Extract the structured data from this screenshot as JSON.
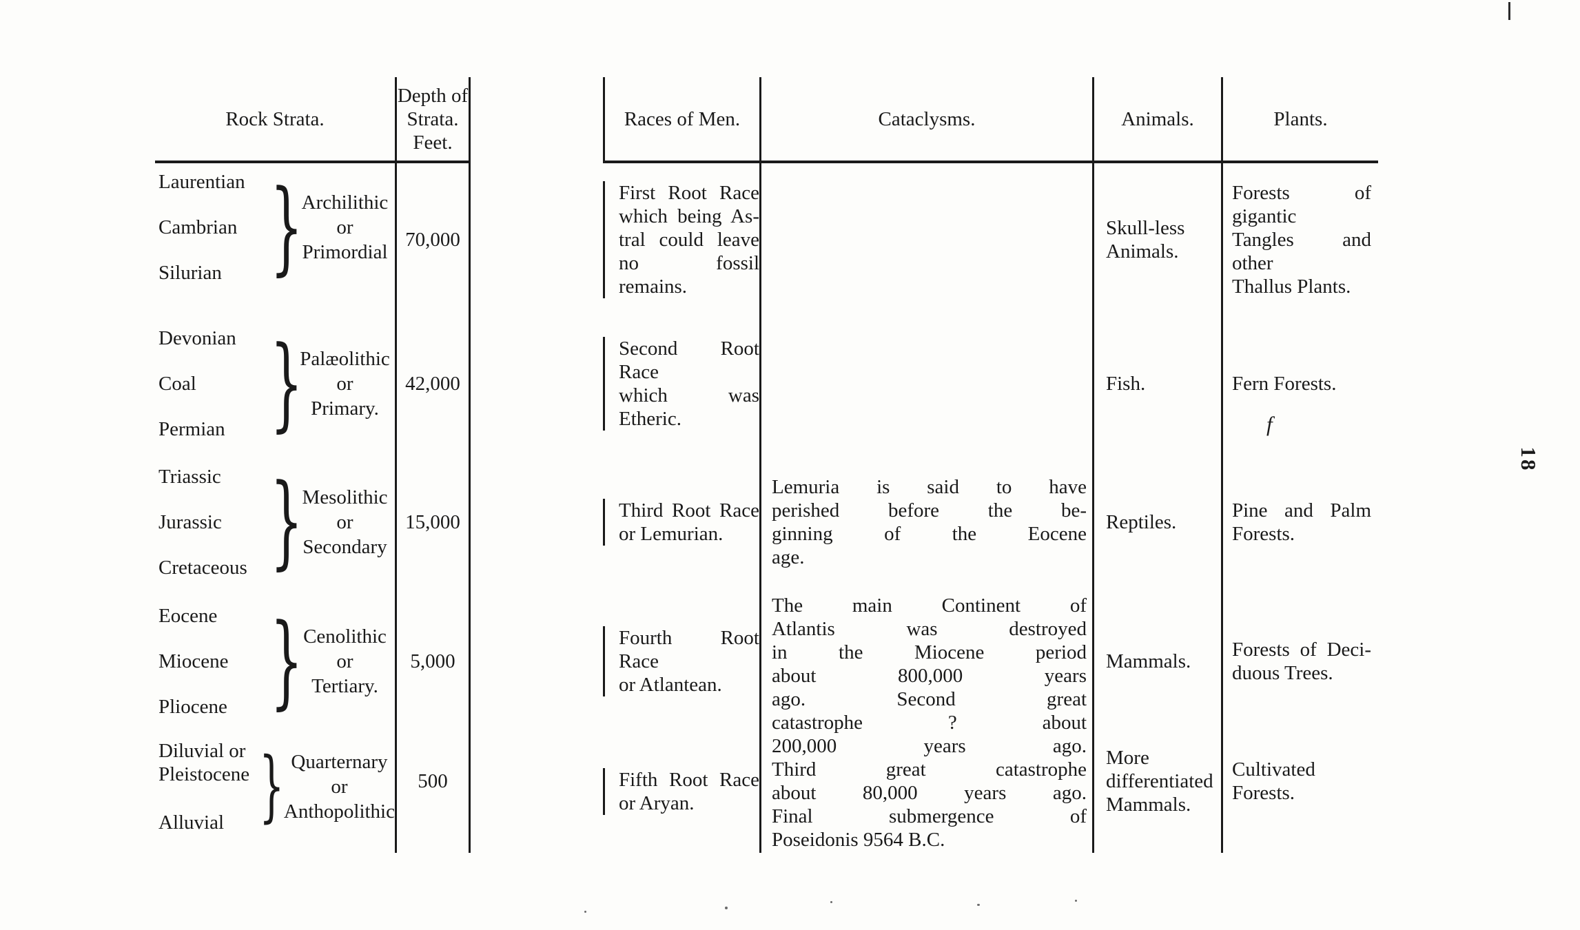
{
  "page": {
    "page_number": "18",
    "ink_color": "#1a1a1a",
    "paper_color": "#fdfdfb",
    "stray_mark": "f"
  },
  "table": {
    "headers": {
      "rock_strata": "Rock Strata.",
      "depth_lines": [
        "Depth of",
        "Strata.",
        "Feet."
      ],
      "races": "Races of Men.",
      "cataclysms": "Cataclysms.",
      "animals": "Animals.",
      "plants": "Plants."
    },
    "rows": [
      {
        "strata_items": [
          [
            "Laurentian"
          ],
          [
            "Cambrian"
          ],
          [
            "Silurian"
          ]
        ],
        "era_lines": [
          "Archilithic",
          "or",
          "Primordial"
        ],
        "depth": "70,000",
        "races_lines": [
          "First Root Race",
          "which being As-",
          "tral could leave",
          "no fossil remains."
        ],
        "cataclysms_lines": [],
        "animals_lines": [
          "Skull-less",
          "Animals."
        ],
        "plants_lines": [
          "Forests of gigantic",
          "Tangles and other",
          "Thallus Plants."
        ]
      },
      {
        "strata_items": [
          [
            "Devonian"
          ],
          [
            "Coal"
          ],
          [
            "Permian"
          ]
        ],
        "era_lines": [
          "Palæolithic",
          "or",
          "Primary."
        ],
        "depth": "42,000",
        "races_lines": [
          "Second Root Race",
          "which was Etheric."
        ],
        "cataclysms_lines": [],
        "animals_lines": [
          "Fish."
        ],
        "plants_lines": [
          "Fern Forests."
        ]
      },
      {
        "strata_items": [
          [
            "Triassic"
          ],
          [
            "Jurassic"
          ],
          [
            "Cretaceous"
          ]
        ],
        "era_lines": [
          "Mesolithic",
          "or",
          "Secondary"
        ],
        "depth": "15,000",
        "races_lines": [
          "Third Root Race",
          "or Lemurian."
        ],
        "cataclysms_lines": [
          "Lemuria is said to have",
          "perished before the be-",
          "ginning of the Eocene",
          "age."
        ],
        "animals_lines": [
          "Reptiles."
        ],
        "plants_lines": [
          "Pine and Palm",
          "Forests."
        ]
      },
      {
        "strata_items": [
          [
            "Eocene"
          ],
          [
            "Miocene"
          ],
          [
            "Pliocene"
          ]
        ],
        "era_lines": [
          "Cenolithic",
          "or",
          "Tertiary."
        ],
        "depth": "5,000",
        "races_lines": [
          "Fourth Root Race",
          "or Atlantean."
        ],
        "cataclysms_lines": [
          "The main Continent of",
          "Atlantis was destroyed",
          "in the Miocene period",
          "about 800,000 years",
          "ago. Second great",
          "catastrophe ? about",
          "200,000 years ago.",
          "Third great catastrophe",
          "about 80,000 years ago.",
          "Final submergence of",
          "Poseidonis 9564 B.C."
        ],
        "animals_lines": [
          "Mammals."
        ],
        "plants_lines": [
          "Forests of Deci-",
          "duous Trees."
        ]
      },
      {
        "strata_items": [
          [
            "Diluvial or",
            "Pleistocene"
          ],
          [
            "Alluvial"
          ]
        ],
        "era_lines": [
          "Quarternary",
          "or",
          "Anthopolithic"
        ],
        "depth": "500",
        "races_lines": [
          "Fifth Root Race",
          "or Aryan."
        ],
        "cataclysms_lines": [],
        "animals_lines": [
          "More",
          "differentiated",
          "Mammals."
        ],
        "plants_lines": [
          "Cultivated",
          "Forests."
        ]
      }
    ]
  }
}
